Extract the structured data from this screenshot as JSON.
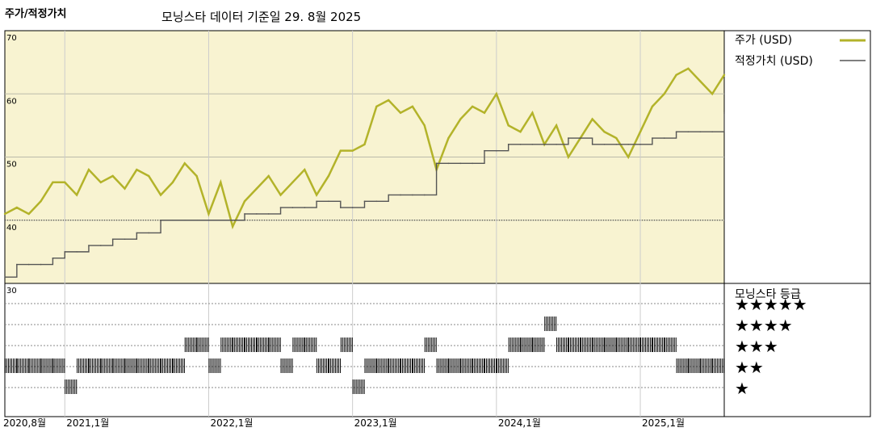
{
  "header": {
    "title": "주가/적정가치",
    "subtitle": "모닝스타 데이터 기준일 29. 8월 2025"
  },
  "colors": {
    "price_line": "#b3b32a",
    "fair_value_line": "#555555",
    "upper_panel_bg": "#f8f3d1",
    "rating_bar": "#000000"
  },
  "legend": {
    "price_label": "주가 (USD)",
    "fair_value_label": "적정가치 (USD)",
    "rating_title": "모닝스타 등급"
  },
  "chart_data": {
    "type": "line",
    "title": "주가/적정가치",
    "xlabel": "",
    "ylabel": "",
    "ylim": [
      30,
      70
    ],
    "grid": true,
    "legend_position": "right",
    "y_ticks": [
      "30",
      "40",
      "50",
      "60",
      "70"
    ],
    "x_tick_labels": [
      "2020,8월",
      "2021,1월",
      "2022,1월",
      "2023,1월",
      "2024,1월",
      "2025,1월"
    ],
    "x_tick_dates": [
      "2020-08",
      "2021-01",
      "2022-01",
      "2023-01",
      "2024-01",
      "2025-01"
    ],
    "x_range": [
      "2020-08",
      "2025-08"
    ],
    "series": [
      {
        "name": "주가 (USD)",
        "x": [
          "2020-08",
          "2020-09",
          "2020-10",
          "2020-11",
          "2020-12",
          "2021-01",
          "2021-02",
          "2021-03",
          "2021-04",
          "2021-05",
          "2021-06",
          "2021-07",
          "2021-08",
          "2021-09",
          "2021-10",
          "2021-11",
          "2021-12",
          "2022-01",
          "2022-02",
          "2022-03",
          "2022-04",
          "2022-05",
          "2022-06",
          "2022-07",
          "2022-08",
          "2022-09",
          "2022-10",
          "2022-11",
          "2022-12",
          "2023-01",
          "2023-02",
          "2023-03",
          "2023-04",
          "2023-05",
          "2023-06",
          "2023-07",
          "2023-08",
          "2023-09",
          "2023-10",
          "2023-11",
          "2023-12",
          "2024-01",
          "2024-02",
          "2024-03",
          "2024-04",
          "2024-05",
          "2024-06",
          "2024-07",
          "2024-08",
          "2024-09",
          "2024-10",
          "2024-11",
          "2024-12",
          "2025-01",
          "2025-02",
          "2025-03",
          "2025-04",
          "2025-05",
          "2025-06",
          "2025-07",
          "2025-08"
        ],
        "values": [
          41,
          42,
          41,
          43,
          46,
          46,
          44,
          48,
          46,
          47,
          45,
          48,
          47,
          44,
          46,
          49,
          47,
          41,
          46,
          39,
          43,
          45,
          47,
          44,
          46,
          48,
          44,
          47,
          51,
          51,
          52,
          58,
          59,
          57,
          58,
          55,
          48,
          53,
          56,
          58,
          57,
          60,
          55,
          54,
          57,
          52,
          55,
          50,
          53,
          56,
          54,
          53,
          50,
          54,
          58,
          60,
          63,
          64,
          62,
          60,
          63
        ],
        "line_style": "solid"
      },
      {
        "name": "적정가치 (USD)",
        "x": [
          "2020-08",
          "2020-09",
          "2020-10",
          "2020-11",
          "2020-12",
          "2021-01",
          "2021-02",
          "2021-03",
          "2021-04",
          "2021-05",
          "2021-06",
          "2021-07",
          "2021-08",
          "2021-09",
          "2021-10",
          "2021-11",
          "2021-12",
          "2022-01",
          "2022-02",
          "2022-03",
          "2022-04",
          "2022-05",
          "2022-06",
          "2022-07",
          "2022-08",
          "2022-09",
          "2022-10",
          "2022-11",
          "2022-12",
          "2023-01",
          "2023-02",
          "2023-03",
          "2023-04",
          "2023-05",
          "2023-06",
          "2023-07",
          "2023-08",
          "2023-09",
          "2023-10",
          "2023-11",
          "2023-12",
          "2024-01",
          "2024-02",
          "2024-03",
          "2024-04",
          "2024-05",
          "2024-06",
          "2024-07",
          "2024-08",
          "2024-09",
          "2024-10",
          "2024-11",
          "2024-12",
          "2025-01",
          "2025-02",
          "2025-03",
          "2025-04",
          "2025-05",
          "2025-06",
          "2025-07",
          "2025-08"
        ],
        "values": [
          31,
          33,
          33,
          33,
          34,
          35,
          35,
          36,
          36,
          37,
          37,
          38,
          38,
          40,
          40,
          40,
          40,
          40,
          40,
          40,
          41,
          41,
          41,
          42,
          42,
          42,
          43,
          43,
          42,
          42,
          43,
          43,
          44,
          44,
          44,
          44,
          49,
          49,
          49,
          49,
          51,
          51,
          52,
          52,
          52,
          52,
          52,
          53,
          53,
          52,
          52,
          52,
          52,
          52,
          53,
          53,
          54,
          54,
          54,
          54,
          57
        ],
        "line_style": "step"
      }
    ],
    "star_rating": {
      "title": "모닝스타 등급",
      "levels": [
        "★★★★★",
        "★★★★",
        "★★★",
        "★★",
        "★"
      ],
      "x": [
        "2020-08",
        "2020-09",
        "2020-10",
        "2020-11",
        "2020-12",
        "2021-01",
        "2021-02",
        "2021-03",
        "2021-04",
        "2021-05",
        "2021-06",
        "2021-07",
        "2021-08",
        "2021-09",
        "2021-10",
        "2021-11",
        "2021-12",
        "2022-01",
        "2022-02",
        "2022-03",
        "2022-04",
        "2022-05",
        "2022-06",
        "2022-07",
        "2022-08",
        "2022-09",
        "2022-10",
        "2022-11",
        "2022-12",
        "2023-01",
        "2023-02",
        "2023-03",
        "2023-04",
        "2023-05",
        "2023-06",
        "2023-07",
        "2023-08",
        "2023-09",
        "2023-10",
        "2023-11",
        "2023-12",
        "2024-01",
        "2024-02",
        "2024-03",
        "2024-04",
        "2024-05",
        "2024-06",
        "2024-07",
        "2024-08",
        "2024-09",
        "2024-10",
        "2024-11",
        "2024-12",
        "2025-01",
        "2025-02",
        "2025-03",
        "2025-04",
        "2025-05",
        "2025-06",
        "2025-07",
        "2025-08"
      ],
      "values": [
        2,
        2,
        2,
        2,
        2,
        1,
        2,
        2,
        2,
        2,
        2,
        2,
        2,
        2,
        2,
        3,
        3,
        2,
        3,
        3,
        3,
        3,
        3,
        2,
        3,
        3,
        2,
        2,
        3,
        1,
        2,
        2,
        2,
        2,
        2,
        3,
        2,
        2,
        2,
        2,
        2,
        2,
        3,
        3,
        3,
        4,
        3,
        3,
        3,
        3,
        3,
        3,
        3,
        3,
        3,
        3,
        2,
        2,
        2,
        2,
        2
      ]
    }
  }
}
